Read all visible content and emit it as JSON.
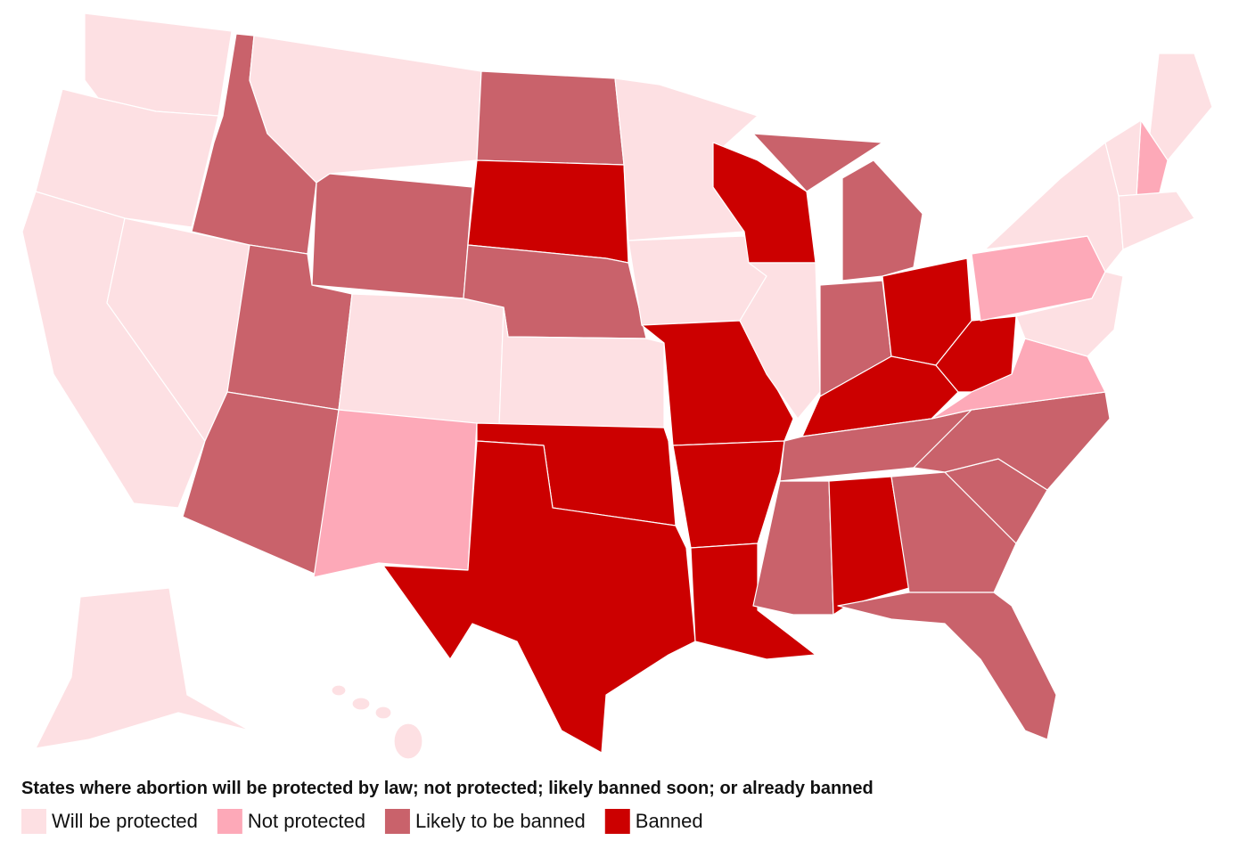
{
  "legend": {
    "title": "States where abortion will be protected by law; not protected; likely banned soon; or already banned",
    "items": [
      {
        "label": "Will be protected",
        "color": "#fde0e3"
      },
      {
        "label": "Not protected",
        "color": "#fda9b8"
      },
      {
        "label": "Likely to be banned",
        "color": "#c9626b"
      },
      {
        "label": "Banned",
        "color": "#cc0000"
      }
    ]
  }
}
